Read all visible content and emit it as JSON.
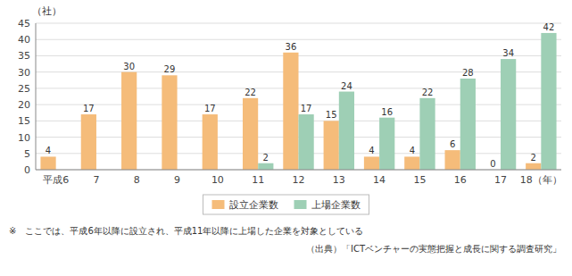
{
  "chart_data": {
    "type": "bar",
    "ylabel": "（社）",
    "categories": [
      "平成6",
      "7",
      "8",
      "9",
      "10",
      "11",
      "12",
      "13",
      "14",
      "15",
      "16",
      "17",
      "18（年）"
    ],
    "series": [
      {
        "name": "設立企業数",
        "color": "#F5BC7A",
        "values": [
          4,
          17,
          30,
          29,
          17,
          22,
          36,
          15,
          4,
          4,
          6,
          0,
          2
        ]
      },
      {
        "name": "上場企業数",
        "color": "#9ECFB5",
        "values": [
          null,
          null,
          null,
          null,
          null,
          2,
          17,
          24,
          16,
          22,
          28,
          34,
          42
        ]
      }
    ],
    "ylim": [
      0,
      45
    ],
    "yticks": [
      0,
      5,
      10,
      15,
      20,
      25,
      30,
      35,
      40,
      45
    ],
    "grid": true,
    "data_labels": true,
    "legend": "bottom",
    "annotations": [
      "※　ここでは、平成6年以降に設立され、平成11年以降に上場した企業を対象としている",
      "（出典）「ICTベンチャーの実態把握と成長に関する調査研究」"
    ]
  }
}
